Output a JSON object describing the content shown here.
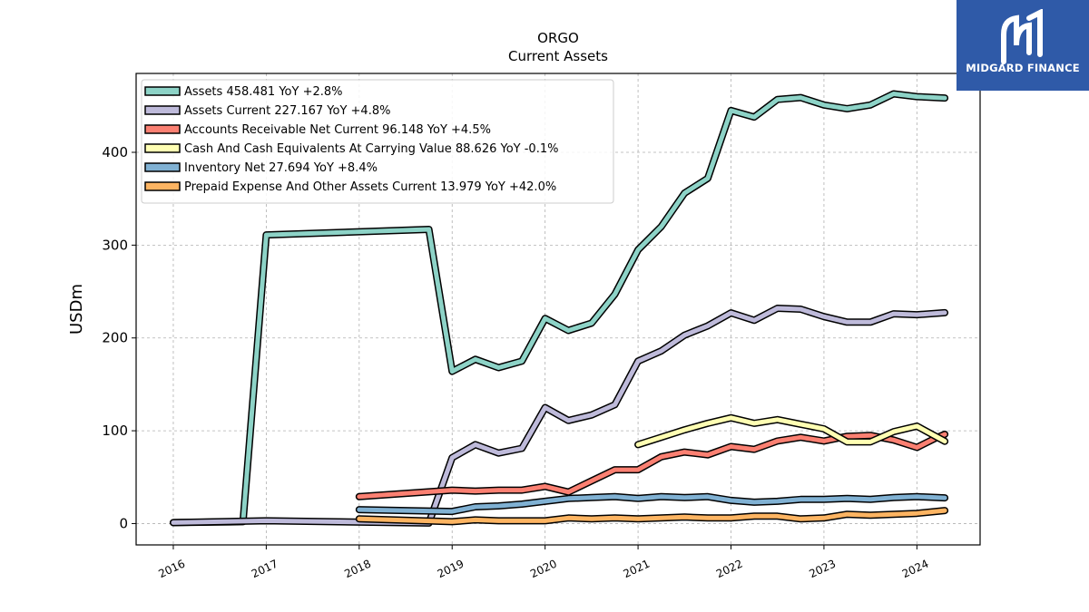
{
  "brand": {
    "name": "MIDGARD FINANCE",
    "logo_icon": "midgard-logo-icon",
    "color": "#2f5aa8"
  },
  "chart_data": {
    "type": "line",
    "title": "ORGO",
    "subtitle": "Current  Assets",
    "ylabel": "USDm",
    "xlabel": "",
    "xlim": [
      2015.6,
      2024.68
    ],
    "ylim": [
      -23,
      485
    ],
    "x_ticks": [
      2016,
      2017,
      2018,
      2019,
      2020,
      2021,
      2022,
      2023,
      2024
    ],
    "y_ticks": [
      0,
      100,
      200,
      300,
      400
    ],
    "grid": true,
    "legend_position": "top-left",
    "series": [
      {
        "name": "Assets  458.481 YoY +2.8%",
        "color": "#8dd3c7",
        "points": [
          [
            2016.0,
            1.0
          ],
          [
            2016.75,
            2.0
          ],
          [
            2017.0,
            311
          ],
          [
            2018.75,
            317
          ],
          [
            2019.0,
            164
          ],
          [
            2019.25,
            177
          ],
          [
            2019.5,
            168
          ],
          [
            2019.75,
            175
          ],
          [
            2020.0,
            221
          ],
          [
            2020.25,
            208
          ],
          [
            2020.5,
            216
          ],
          [
            2020.75,
            247
          ],
          [
            2021.0,
            295
          ],
          [
            2021.25,
            320
          ],
          [
            2021.5,
            356
          ],
          [
            2021.75,
            372
          ],
          [
            2022.0,
            445
          ],
          [
            2022.25,
            438
          ],
          [
            2022.5,
            457
          ],
          [
            2022.75,
            459
          ],
          [
            2023.0,
            451
          ],
          [
            2023.25,
            447
          ],
          [
            2023.5,
            451
          ],
          [
            2023.75,
            463
          ],
          [
            2024.0,
            460
          ],
          [
            2024.3,
            458.481
          ]
        ]
      },
      {
        "name": "Assets Current  227.167 YoY +4.8%",
        "color": "#bebada",
        "points": [
          [
            2016.0,
            1.0
          ],
          [
            2017.0,
            3.0
          ],
          [
            2018.75,
            0.5
          ],
          [
            2019.0,
            71
          ],
          [
            2019.25,
            85
          ],
          [
            2019.5,
            76
          ],
          [
            2019.75,
            81
          ],
          [
            2020.0,
            125
          ],
          [
            2020.25,
            111
          ],
          [
            2020.5,
            117
          ],
          [
            2020.75,
            128
          ],
          [
            2021.0,
            175
          ],
          [
            2021.25,
            186
          ],
          [
            2021.5,
            203
          ],
          [
            2021.75,
            213
          ],
          [
            2022.0,
            227
          ],
          [
            2022.25,
            219
          ],
          [
            2022.5,
            232
          ],
          [
            2022.75,
            231
          ],
          [
            2023.0,
            223
          ],
          [
            2023.25,
            217
          ],
          [
            2023.5,
            217
          ],
          [
            2023.75,
            226
          ],
          [
            2024.0,
            225
          ],
          [
            2024.3,
            227.167
          ]
        ]
      },
      {
        "name": "Accounts Receivable Net Current  96.148 YoY +4.5%",
        "color": "#fb8072",
        "points": [
          [
            2018.0,
            29
          ],
          [
            2019.0,
            36
          ],
          [
            2019.25,
            35
          ],
          [
            2019.5,
            36
          ],
          [
            2019.75,
            36
          ],
          [
            2020.0,
            40
          ],
          [
            2020.25,
            34
          ],
          [
            2020.5,
            46
          ],
          [
            2020.75,
            58
          ],
          [
            2021.0,
            58
          ],
          [
            2021.25,
            72
          ],
          [
            2021.5,
            77
          ],
          [
            2021.75,
            74
          ],
          [
            2022.0,
            83
          ],
          [
            2022.25,
            80
          ],
          [
            2022.5,
            89
          ],
          [
            2022.75,
            93
          ],
          [
            2023.0,
            89
          ],
          [
            2023.25,
            94
          ],
          [
            2023.5,
            95
          ],
          [
            2023.75,
            90
          ],
          [
            2024.0,
            82
          ],
          [
            2024.2,
            92
          ],
          [
            2024.3,
            96.148
          ]
        ]
      },
      {
        "name": "Cash And Cash Equivalents At Carrying Value  88.626 YoY -0.1%",
        "color": "#ffffb3",
        "points": [
          [
            2021.0,
            85
          ],
          [
            2021.25,
            93
          ],
          [
            2021.5,
            101
          ],
          [
            2021.75,
            108
          ],
          [
            2022.0,
            114
          ],
          [
            2022.25,
            108
          ],
          [
            2022.5,
            112
          ],
          [
            2022.75,
            107
          ],
          [
            2023.0,
            102
          ],
          [
            2023.25,
            88
          ],
          [
            2023.5,
            88
          ],
          [
            2023.75,
            99
          ],
          [
            2024.0,
            105
          ],
          [
            2024.3,
            88.626
          ]
        ]
      },
      {
        "name": "Inventory Net  27.694 YoY +8.4%",
        "color": "#80b1d3",
        "points": [
          [
            2018.0,
            15
          ],
          [
            2019.0,
            13
          ],
          [
            2019.25,
            18
          ],
          [
            2019.5,
            19
          ],
          [
            2019.75,
            21
          ],
          [
            2020.0,
            24
          ],
          [
            2020.25,
            27
          ],
          [
            2020.5,
            28
          ],
          [
            2020.75,
            29
          ],
          [
            2021.0,
            27
          ],
          [
            2021.25,
            29
          ],
          [
            2021.5,
            28
          ],
          [
            2021.75,
            29
          ],
          [
            2022.0,
            25
          ],
          [
            2022.25,
            23
          ],
          [
            2022.5,
            24
          ],
          [
            2022.75,
            26
          ],
          [
            2023.0,
            26
          ],
          [
            2023.25,
            27
          ],
          [
            2023.5,
            26
          ],
          [
            2023.75,
            28
          ],
          [
            2024.0,
            29
          ],
          [
            2024.3,
            27.694
          ]
        ]
      },
      {
        "name": "Prepaid Expense And Other Assets Current  13.979 YoY +42.0%",
        "color": "#fdb462",
        "points": [
          [
            2018.0,
            5
          ],
          [
            2019.0,
            2
          ],
          [
            2019.25,
            4
          ],
          [
            2019.5,
            3
          ],
          [
            2019.75,
            3
          ],
          [
            2020.0,
            3
          ],
          [
            2020.25,
            6
          ],
          [
            2020.5,
            5
          ],
          [
            2020.75,
            6
          ],
          [
            2021.0,
            5
          ],
          [
            2021.25,
            6
          ],
          [
            2021.5,
            7
          ],
          [
            2021.75,
            6
          ],
          [
            2022.0,
            6
          ],
          [
            2022.25,
            8
          ],
          [
            2022.5,
            8
          ],
          [
            2022.75,
            5
          ],
          [
            2023.0,
            6
          ],
          [
            2023.25,
            10
          ],
          [
            2023.5,
            9
          ],
          [
            2023.75,
            10
          ],
          [
            2024.0,
            11
          ],
          [
            2024.3,
            13.979
          ]
        ]
      }
    ]
  }
}
